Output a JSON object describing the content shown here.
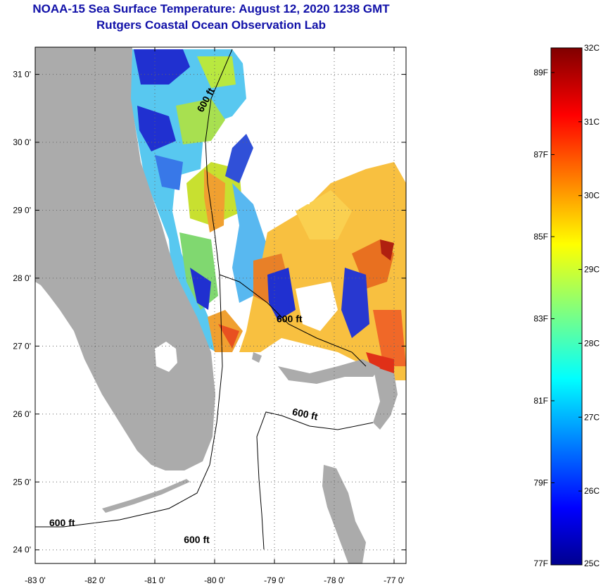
{
  "title": "NOAA-15 Sea Surface Temperature:  August 12, 2020 1238 GMT",
  "subtitle": "Rutgers Coastal Ocean Observation Lab",
  "map": {
    "lon_range": [
      -83.0,
      -76.8
    ],
    "lat_range": [
      23.8,
      31.4
    ],
    "lon_ticks": [
      {
        "value": -83,
        "label": "-83 0'"
      },
      {
        "value": -82,
        "label": "-82 0'"
      },
      {
        "value": -81,
        "label": "-81 0'"
      },
      {
        "value": -80,
        "label": "-80 0'"
      },
      {
        "value": -79,
        "label": "-79 0'"
      },
      {
        "value": -78,
        "label": "-78 0'"
      },
      {
        "value": -77,
        "label": "-77 0'"
      }
    ],
    "lat_ticks": [
      {
        "value": 24,
        "label": "24 0'"
      },
      {
        "value": 25,
        "label": "25 0'"
      },
      {
        "value": 26,
        "label": "26 0'"
      },
      {
        "value": 27,
        "label": "27 0'"
      },
      {
        "value": 28,
        "label": "28 0'"
      },
      {
        "value": 29,
        "label": "29 0'"
      },
      {
        "value": 30,
        "label": "30 0'"
      },
      {
        "value": 31,
        "label": "31 0'"
      }
    ],
    "isobath_labels": [
      {
        "text": "600 ft",
        "lon": -80.1,
        "lat": 30.6,
        "rotate": -62
      },
      {
        "text": "600 ft",
        "lon": -78.75,
        "lat": 27.35,
        "rotate": 0
      },
      {
        "text": "600 ft",
        "lon": -78.5,
        "lat": 25.95,
        "rotate": 12
      },
      {
        "text": "600 ft",
        "lon": -82.55,
        "lat": 24.35,
        "rotate": 0
      },
      {
        "text": "600 ft",
        "lon": -80.3,
        "lat": 24.1,
        "rotate": 0
      }
    ],
    "colors": {
      "land": "#ababab",
      "nodata": "#ffffff",
      "contour": "#000000",
      "grid": "#555555"
    }
  },
  "colorbar": {
    "min_c": 25,
    "max_c": 32,
    "celsius_labels": [
      "32C",
      "31C",
      "30C",
      "29C",
      "28C",
      "27C",
      "26C",
      "25C"
    ],
    "fahrenheit_labels": [
      "89F",
      "87F",
      "85F",
      "83F",
      "81F",
      "79F",
      "77F"
    ],
    "fahrenheit_values": [
      89,
      87,
      85,
      83,
      81,
      79,
      77
    ]
  }
}
